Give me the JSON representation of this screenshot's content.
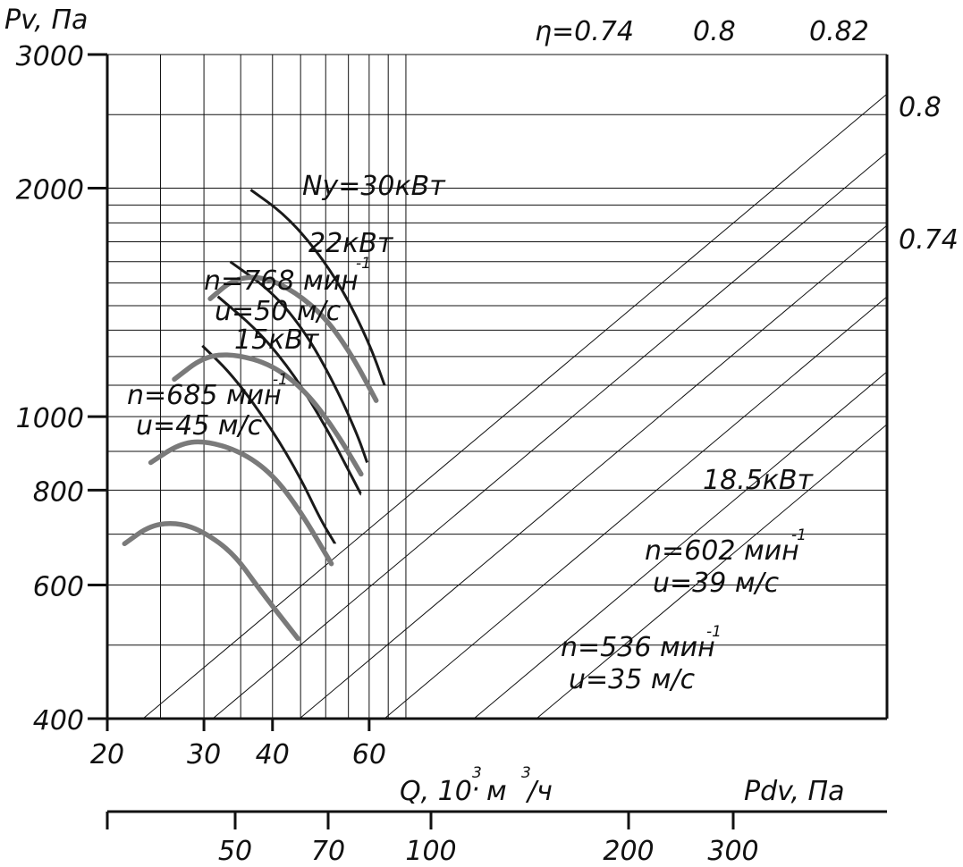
{
  "chart_data": {
    "type": "line",
    "title": "",
    "x_axis": {
      "label": "Q, 10³·м³/ч",
      "label_prefix": "Q, 10",
      "label_exp1": "3",
      "label_dot": "·",
      "label_mid": " м",
      "label_exp2": "3",
      "label_suffix": "/ч",
      "scale": "log",
      "range": [
        20,
        78
      ],
      "ticks": [
        "20",
        "30",
        "40",
        "60"
      ],
      "tick_values": [
        20,
        30,
        40,
        60
      ],
      "gridlines": [
        20,
        25,
        30,
        35,
        40,
        45,
        50,
        55,
        60,
        65,
        70
      ]
    },
    "y_axis": {
      "label": "Pv, Па",
      "scale": "log",
      "range": [
        400,
        3000
      ],
      "ticks": [
        "3000",
        "2000",
        "1000",
        "800",
        "600",
        "400"
      ],
      "tick_values": [
        3000,
        2000,
        1000,
        800,
        600,
        400
      ],
      "gridlines": [
        400,
        500,
        600,
        700,
        800,
        900,
        1000,
        1100,
        1200,
        1300,
        1400,
        1500,
        1600,
        1700,
        1800,
        1900,
        2000,
        2500,
        3000
      ]
    },
    "secondary_axis": {
      "label": "Pdv, Па",
      "ticks": [
        "50",
        "70",
        "100",
        "200",
        "300"
      ],
      "tick_values": [
        50,
        70,
        100,
        200,
        300
      ]
    },
    "efficiency_lines": {
      "top_labels": [
        "η=0.74",
        "0.8",
        "0.82"
      ],
      "right_labels": [
        "0.8",
        "0.74"
      ]
    },
    "series_speed": [
      {
        "name": "n=768 мин⁻¹, u=50 м/с",
        "label_n": "n=768 мин",
        "label_exp": "-1",
        "label_u": "u=50 м/с",
        "x": [
          30.8,
          34,
          38.5,
          44,
          50,
          56,
          61.8
        ],
        "y": [
          1430,
          1520,
          1530,
          1460,
          1350,
          1200,
          1050
        ]
      },
      {
        "name": "n=685 мин⁻¹, u=45 м/с",
        "label_n": "n=685 мин",
        "label_exp": "-1",
        "label_u": "u=45 м/с",
        "x": [
          26.5,
          30,
          34,
          40,
          46,
          52,
          58
        ],
        "y": [
          1120,
          1200,
          1210,
          1170,
          1080,
          960,
          840
        ]
      },
      {
        "name": "n=602 мин⁻¹, u=39 м/с",
        "label_n": "n=602 мин",
        "label_exp": "-1",
        "label_u": "u=39 м/с",
        "x": [
          24,
          27,
          30,
          35,
          40,
          45,
          51.2
        ],
        "y": [
          870,
          920,
          930,
          900,
          840,
          750,
          640
        ]
      },
      {
        "name": "n=536 мин⁻¹, u=35 м/с",
        "label_n": "n=536 мин",
        "label_exp": "-1",
        "label_u": "u=35 м/с",
        "x": [
          21.5,
          24,
          27,
          30,
          34,
          38,
          44.5
        ],
        "y": [
          680,
          720,
          725,
          705,
          660,
          590,
          510
        ]
      }
    ],
    "series_power": [
      {
        "name": "Ny=30кВт",
        "x": [
          36.5,
          42,
          48,
          54,
          60,
          64
        ],
        "y": [
          1990,
          1850,
          1660,
          1460,
          1250,
          1100
        ]
      },
      {
        "name": "22кВт",
        "x": [
          33.5,
          40,
          46,
          52,
          57,
          59.5
        ],
        "y": [
          1600,
          1460,
          1290,
          1100,
          950,
          870
        ]
      },
      {
        "name": "18.5кВт",
        "x": [
          31.8,
          38,
          44,
          50,
          55,
          58
        ],
        "y": [
          1440,
          1290,
          1130,
          970,
          850,
          790
        ]
      },
      {
        "name": "15кВт",
        "x": [
          29.8,
          34,
          40,
          45,
          49,
          52
        ],
        "y": [
          1240,
          1130,
          960,
          830,
          730,
          680
        ]
      }
    ],
    "power_labels": {
      "p30": "Ny=30кВт",
      "p22": "22кВт",
      "p15": "15кВт",
      "p185": "18.5кВт"
    }
  }
}
